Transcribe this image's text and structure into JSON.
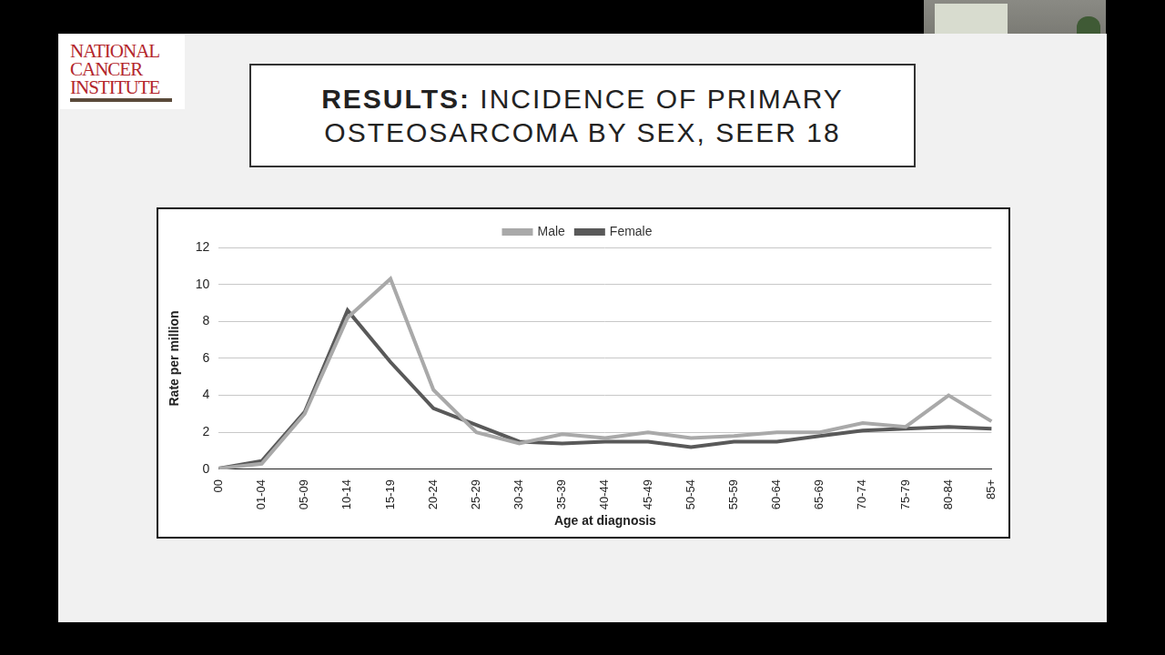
{
  "logo": [
    "NATIONAL",
    "CANCER",
    "INSTITUTE"
  ],
  "chart_data": {
    "type": "line",
    "title": "RESULTS: INCIDENCE OF PRIMARY OSTEOSARCOMA BY SEX, SEER 18",
    "x_label": "Age at diagnosis",
    "y_label": "Rate per million",
    "categories": [
      "00",
      "01-04",
      "05-09",
      "10-14",
      "15-19",
      "20-24",
      "25-29",
      "30-34",
      "35-39",
      "40-44",
      "45-49",
      "50-54",
      "55-59",
      "60-64",
      "65-69",
      "70-74",
      "75-79",
      "80-84",
      "85+"
    ],
    "series": [
      {
        "name": "Male",
        "color": "#a9a9a9",
        "values": [
          0.05,
          0.3,
          3.0,
          8.2,
          10.3,
          4.3,
          2.0,
          1.4,
          1.9,
          1.7,
          2.0,
          1.7,
          1.8,
          2.0,
          2.0,
          2.5,
          2.3,
          4.0,
          2.6
        ]
      },
      {
        "name": "Female",
        "color": "#595959",
        "values": [
          0.05,
          0.45,
          3.1,
          8.6,
          5.8,
          3.3,
          2.4,
          1.5,
          1.4,
          1.5,
          1.5,
          1.2,
          1.5,
          1.5,
          1.8,
          2.1,
          2.2,
          2.3,
          2.2
        ]
      }
    ],
    "ylim": [
      0,
      12
    ],
    "yticks": [
      0,
      2,
      4,
      6,
      8,
      10,
      12
    ],
    "grid": true,
    "legend": "top"
  }
}
